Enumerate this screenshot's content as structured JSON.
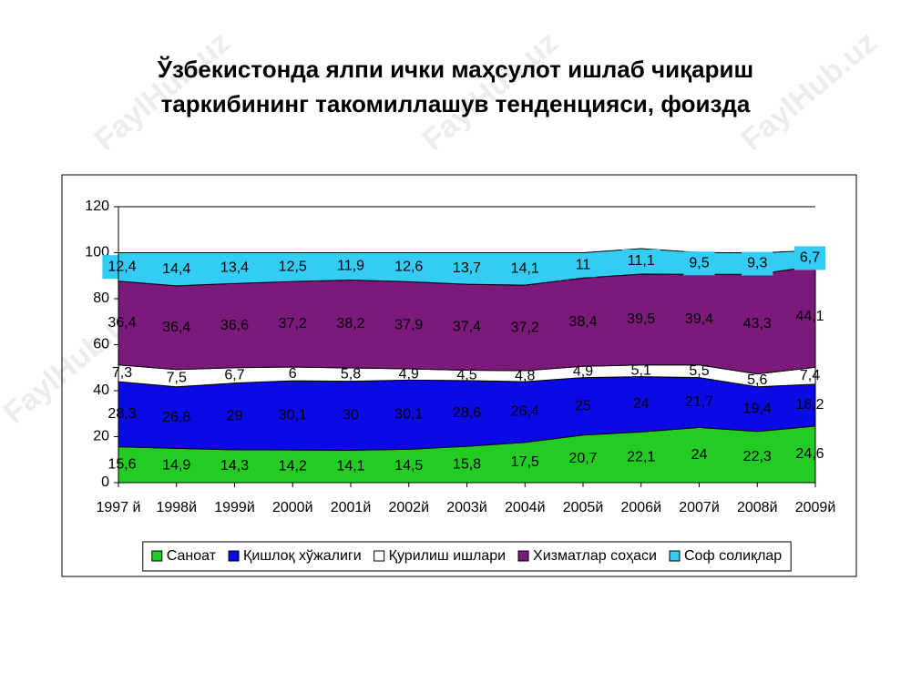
{
  "chart_data": {
    "type": "stacked-area",
    "title": [
      "Ўзбекистонда ялпи ички маҳсулот ишлаб чиқариш",
      "таркибининг такомиллашув тенденцияси, фоизда"
    ],
    "watermark": "FaylHub.uz",
    "categories": [
      "1997 й",
      "1998й",
      "1999й",
      "2000й",
      "2001й",
      "2002й",
      "2003й",
      "2004й",
      "2005й",
      "2006й",
      "2007й",
      "2008й",
      "2009й"
    ],
    "ylim": [
      0,
      120
    ],
    "yticks": [
      0,
      20,
      40,
      60,
      80,
      100,
      120
    ],
    "grid": true,
    "legend": "bottom",
    "series": [
      {
        "name": "Саноат",
        "color": "#22cc22",
        "values": [
          15.6,
          14.9,
          14.3,
          14.2,
          14.1,
          14.5,
          15.8,
          17.5,
          20.7,
          22.1,
          24,
          22.3,
          24.6
        ],
        "value_labels": [
          "15,6",
          "14,9",
          "14,3",
          "14,2",
          "14,1",
          "14,5",
          "15,8",
          "17,5",
          "20,7",
          "22,1",
          "24",
          "22,3",
          "24,6"
        ]
      },
      {
        "name": "Қишлоқ хўжалиги",
        "color": "#0a0ae6",
        "values": [
          28.3,
          26.8,
          29,
          30.1,
          30,
          30.1,
          28.6,
          26.4,
          25,
          24,
          21.7,
          19.4,
          18.2
        ],
        "value_labels": [
          "28,3",
          "26,8",
          "29",
          "30,1",
          "30",
          "30,1",
          "28,6",
          "26,4",
          "25",
          "24",
          "21,7",
          "19,4",
          "18,2"
        ]
      },
      {
        "name": "Қурилиш ишлари",
        "color": "#ffffff",
        "values": [
          7.3,
          7.5,
          6.7,
          6,
          5.8,
          4.9,
          4.5,
          4.8,
          4.9,
          5.1,
          5.5,
          5.6,
          7.4
        ],
        "value_labels": [
          "7,3",
          "7,5",
          "6,7",
          "6",
          "5,8",
          "4,9",
          "4,5",
          "4,8",
          "4,9",
          "5,1",
          "5,5",
          "5,6",
          "7,4"
        ]
      },
      {
        "name": "Хизматлар соҳаси",
        "color": "#7b1a7b",
        "values": [
          36.4,
          36.4,
          36.6,
          37.2,
          38.2,
          37.9,
          37.4,
          37.2,
          38.4,
          39.5,
          39.4,
          43.3,
          44.1
        ],
        "value_labels": [
          "36,4",
          "36,4",
          "36,6",
          "37,2",
          "38,2",
          "37,9",
          "37,4",
          "37,2",
          "38,4",
          "39,5",
          "39,4",
          "43,3",
          "44,1"
        ]
      },
      {
        "name": "Соф солиқлар",
        "color": "#33ccf5",
        "values": [
          12.4,
          14.4,
          13.4,
          12.5,
          11.9,
          12.6,
          13.7,
          14.1,
          11,
          11.1,
          9.5,
          9.3,
          6.7
        ],
        "value_labels": [
          "12,4",
          "14,4",
          "13,4",
          "12,5",
          "11,9",
          "12,6",
          "13,7",
          "14,1",
          "11",
          "11,1",
          "9,5",
          "9,3",
          "6,7"
        ]
      }
    ]
  }
}
